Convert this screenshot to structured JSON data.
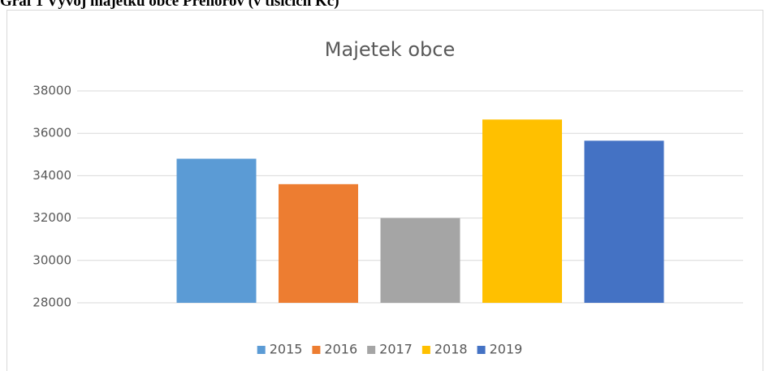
{
  "heading": "Graf 1 Vývoj majetku obce Přehořov (v tisících Kč)",
  "chart_data": {
    "type": "bar",
    "title": "Majetek obce",
    "categories": [
      null
    ],
    "series": [
      {
        "name": "2015",
        "color": "#5b9bd5",
        "values": [
          34800
        ]
      },
      {
        "name": "2016",
        "color": "#ed7d31",
        "values": [
          33600
        ]
      },
      {
        "name": "2017",
        "color": "#a5a5a5",
        "values": [
          32000
        ]
      },
      {
        "name": "2018",
        "color": "#ffc000",
        "values": [
          36650
        ]
      },
      {
        "name": "2019",
        "color": "#4472c4",
        "values": [
          35650
        ]
      }
    ],
    "ylim": [
      28000,
      38000
    ],
    "yticks": [
      28000,
      30000,
      32000,
      34000,
      36000,
      38000
    ],
    "grid": true,
    "legend": "bottom"
  }
}
